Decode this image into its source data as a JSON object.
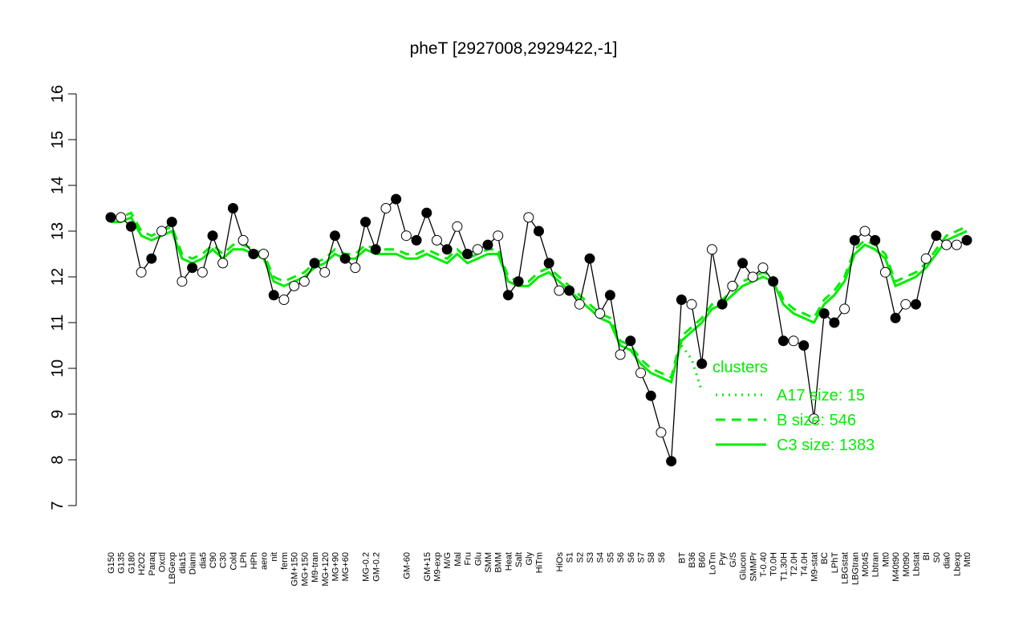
{
  "chart_data": {
    "type": "line",
    "title": "pheT [2927008,2929422,-1]",
    "ylim": [
      7,
      16
    ],
    "yticks": [
      7,
      8,
      9,
      10,
      11,
      12,
      13,
      14,
      15,
      16
    ],
    "categories": [
      "G150",
      "G135",
      "G180",
      "H2O2",
      "Paraq",
      "Oxctl",
      "LBGexp",
      "dia15",
      "Diami",
      "dia5",
      "C90",
      "C30",
      "Cold",
      "LPh",
      "HPh",
      "aero",
      "nit",
      "ferm",
      "GM+150",
      "MG+150",
      "M9-tran",
      "MG+120",
      "MG+90",
      "MG+60",
      null,
      "MG-0.2",
      "GM-0.2",
      null,
      null,
      "GM-60",
      null,
      "GM+15",
      "M9-exp",
      "M/G",
      "Mal",
      "Fru",
      "Glu",
      "SMM",
      "BMM",
      "Heat",
      "Salt",
      "Gly",
      "HiTm",
      null,
      "HiOs",
      "S1",
      "S2",
      "S3",
      "S4",
      "S5",
      "S6",
      "S6",
      "S7",
      "S8",
      "S6",
      null,
      "BT",
      "B36",
      "B60",
      "LoTm",
      "Pyr",
      "G/S",
      "Glucon",
      "SMMPr",
      "T-0.40",
      "T0.0H",
      "T1.30H",
      "T2.0H",
      "T4.0H",
      "M9-stat",
      "BC",
      "LPhT",
      "LBGstat",
      "LBGtran",
      "M0t45",
      "Lbtran",
      "Mt0",
      "M40t90",
      "M0t90",
      "Lbstat",
      "BI",
      "S0",
      "dia0",
      "Lbexp",
      "Mt0"
    ],
    "values": [
      13.3,
      13.3,
      13.1,
      12.1,
      12.4,
      13.0,
      13.2,
      11.9,
      12.2,
      12.1,
      12.9,
      12.3,
      13.5,
      12.8,
      12.5,
      12.5,
      11.6,
      11.5,
      11.8,
      11.9,
      12.3,
      12.1,
      12.9,
      12.4,
      12.2,
      13.2,
      12.6,
      13.5,
      13.7,
      12.9,
      12.8,
      13.4,
      12.8,
      12.6,
      13.1,
      12.5,
      12.6,
      12.7,
      12.9,
      11.6,
      11.9,
      13.3,
      13.0,
      12.3,
      11.7,
      11.7,
      11.4,
      12.4,
      11.2,
      11.6,
      10.3,
      10.6,
      9.9,
      9.4,
      8.6,
      7.97,
      11.5,
      11.4,
      10.1,
      12.6,
      11.4,
      11.8,
      12.3,
      12.0,
      12.2,
      11.9,
      10.6,
      10.6,
      10.5,
      8.9,
      11.2,
      11.0,
      11.3,
      12.8,
      13.0,
      12.8,
      12.1,
      11.1,
      11.4,
      11.4,
      12.4,
      12.9,
      12.7,
      12.7,
      12.8
    ],
    "point_fills": [
      "#000",
      "#fff",
      "#000",
      "#fff",
      "#000",
      "#fff",
      "#000",
      "#fff",
      "#000",
      "#fff",
      "#000",
      "#fff",
      "#000",
      "#fff",
      "#000",
      "#fff",
      "#000",
      "#fff",
      "#fff",
      "#fff",
      "#000",
      "#fff",
      "#000",
      "#000",
      "#fff",
      "#000",
      "#000",
      "#fff",
      "#000",
      "#fff",
      "#000",
      "#000",
      "#fff",
      "#000",
      "#fff",
      "#000",
      "#fff",
      "#000",
      "#fff",
      "#000",
      "#000",
      "#fff",
      "#000",
      "#000",
      "#fff",
      "#000",
      "#fff",
      "#000",
      "#fff",
      "#000",
      "#fff",
      "#000",
      "#fff",
      "#000",
      "#fff",
      "#000",
      "#000",
      "#fff",
      "#000",
      "#fff",
      "#000",
      "#fff",
      "#000",
      "#fff",
      "#fff",
      "#000",
      "#000",
      "#fff",
      "#000",
      "#fff",
      "#000",
      "#000",
      "#fff",
      "#000",
      "#fff",
      "#000",
      "#fff",
      "#000",
      "#fff",
      "#000",
      "#fff",
      "#000",
      "#fff",
      "#fff",
      "#000"
    ],
    "line_color": "#000",
    "legend_title": "clusters",
    "clusters": [
      {
        "name": "A17 size: 15",
        "color": "#00ee00",
        "style": "dotted",
        "values": [
          null,
          null,
          null,
          null,
          null,
          null,
          null,
          null,
          null,
          null,
          null,
          null,
          null,
          null,
          null,
          null,
          null,
          null,
          null,
          null,
          null,
          null,
          null,
          null,
          null,
          null,
          null,
          null,
          null,
          null,
          null,
          null,
          null,
          null,
          null,
          null,
          null,
          null,
          null,
          null,
          null,
          null,
          null,
          null,
          null,
          null,
          null,
          null,
          null,
          null,
          null,
          null,
          null,
          null,
          null,
          null,
          10.5,
          10.2,
          9.5,
          null,
          null,
          null,
          null,
          null,
          null,
          null,
          null,
          null,
          null,
          null,
          null,
          null,
          null,
          null,
          null,
          null,
          null,
          null,
          null,
          null,
          null,
          null,
          null,
          null,
          null
        ]
      },
      {
        "name": "B size: 546",
        "color": "#00ee00",
        "style": "dashed",
        "values": [
          13.3,
          13.3,
          13.4,
          13.0,
          12.9,
          13.0,
          13.1,
          12.5,
          12.4,
          12.5,
          12.7,
          12.5,
          12.7,
          12.7,
          12.6,
          12.5,
          12.0,
          11.9,
          12.0,
          12.1,
          12.3,
          12.4,
          12.6,
          12.5,
          12.5,
          12.7,
          12.6,
          12.6,
          12.6,
          12.5,
          12.5,
          12.6,
          12.5,
          12.4,
          12.6,
          12.4,
          12.5,
          12.6,
          12.6,
          12.0,
          11.9,
          11.9,
          12.1,
          12.2,
          12.0,
          11.8,
          11.6,
          11.4,
          11.2,
          11.1,
          10.6,
          10.5,
          10.2,
          10.0,
          9.9,
          9.8,
          10.7,
          10.9,
          11.1,
          11.4,
          11.5,
          11.7,
          11.9,
          12.0,
          12.1,
          12.0,
          11.5,
          11.3,
          11.2,
          11.1,
          11.5,
          11.7,
          12.0,
          12.6,
          12.8,
          12.7,
          12.5,
          11.9,
          12.0,
          12.1,
          12.3,
          12.6,
          12.9,
          13.0,
          13.1
        ]
      },
      {
        "name": "C3 size: 1383",
        "color": "#00ee00",
        "style": "solid",
        "values": [
          13.2,
          13.2,
          13.3,
          12.9,
          12.8,
          12.9,
          13.0,
          12.4,
          12.3,
          12.4,
          12.6,
          12.4,
          12.6,
          12.6,
          12.5,
          12.4,
          11.9,
          11.8,
          11.9,
          12.0,
          12.2,
          12.3,
          12.5,
          12.4,
          12.4,
          12.6,
          12.5,
          12.5,
          12.5,
          12.4,
          12.4,
          12.5,
          12.4,
          12.3,
          12.5,
          12.3,
          12.4,
          12.5,
          12.5,
          11.9,
          11.8,
          11.8,
          12.0,
          12.1,
          11.9,
          11.7,
          11.5,
          11.3,
          11.1,
          11.0,
          10.5,
          10.4,
          10.1,
          9.9,
          9.8,
          9.7,
          10.6,
          10.8,
          11.0,
          11.3,
          11.4,
          11.6,
          11.8,
          11.9,
          12.0,
          11.9,
          11.4,
          11.2,
          11.1,
          11.0,
          11.4,
          11.6,
          11.9,
          12.5,
          12.7,
          12.6,
          12.4,
          11.8,
          11.9,
          12.0,
          12.2,
          12.5,
          12.8,
          12.9,
          13.0
        ]
      }
    ]
  }
}
